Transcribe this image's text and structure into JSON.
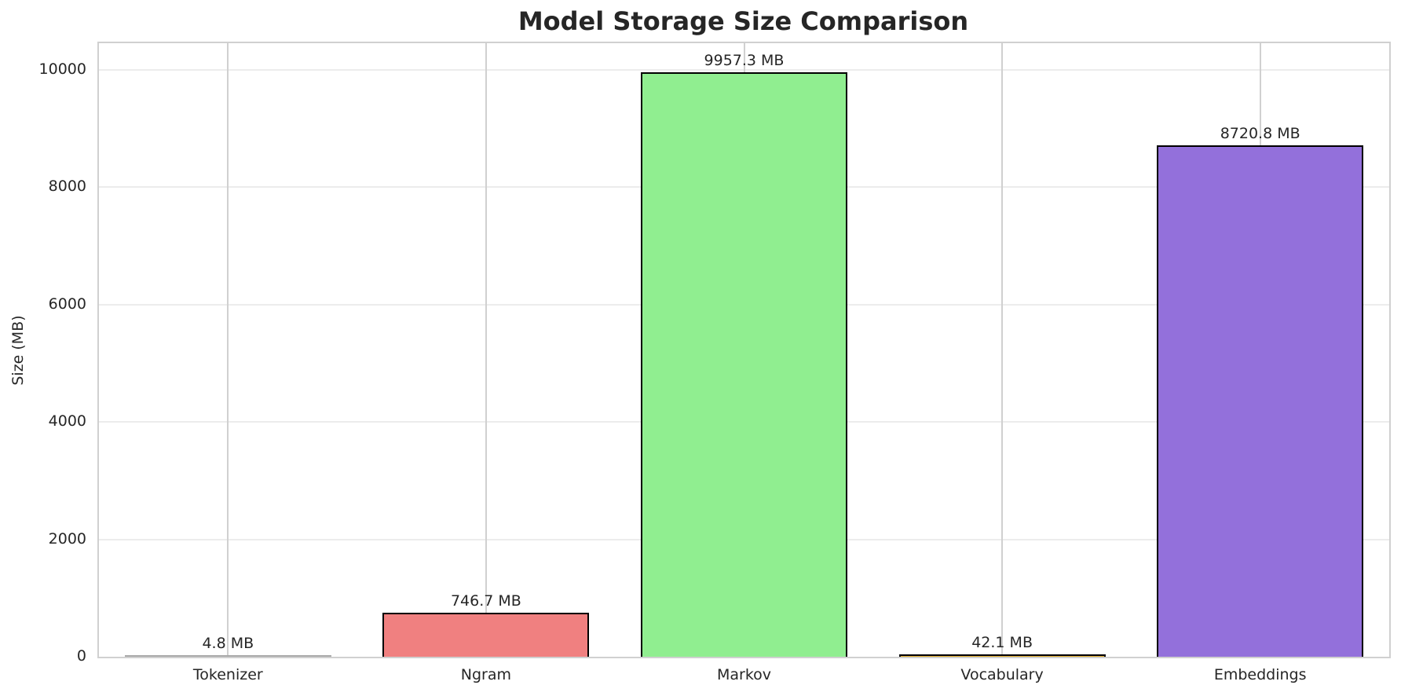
{
  "chart_data": {
    "type": "bar",
    "title": "Model Storage Size Comparison",
    "xlabel": "",
    "ylabel": "Size (MB)",
    "categories": [
      "Tokenizer",
      "Ngram",
      "Markov",
      "Vocabulary",
      "Embeddings"
    ],
    "values": [
      4.8,
      746.7,
      9957.3,
      42.1,
      8720.8
    ],
    "value_labels": [
      "4.8 MB",
      "746.7 MB",
      "9957.3 MB",
      "42.1 MB",
      "8720.8 MB"
    ],
    "colors": [
      "#a9a9a9",
      "#f08080",
      "#90ee90",
      "#daa520",
      "#9370db"
    ],
    "ylim": [
      0,
      10455
    ],
    "yticks": [
      0,
      2000,
      4000,
      6000,
      8000,
      10000
    ],
    "ytick_labels": [
      "0",
      "2000",
      "4000",
      "6000",
      "8000",
      "10000"
    ],
    "grid": true,
    "legend": null
  }
}
